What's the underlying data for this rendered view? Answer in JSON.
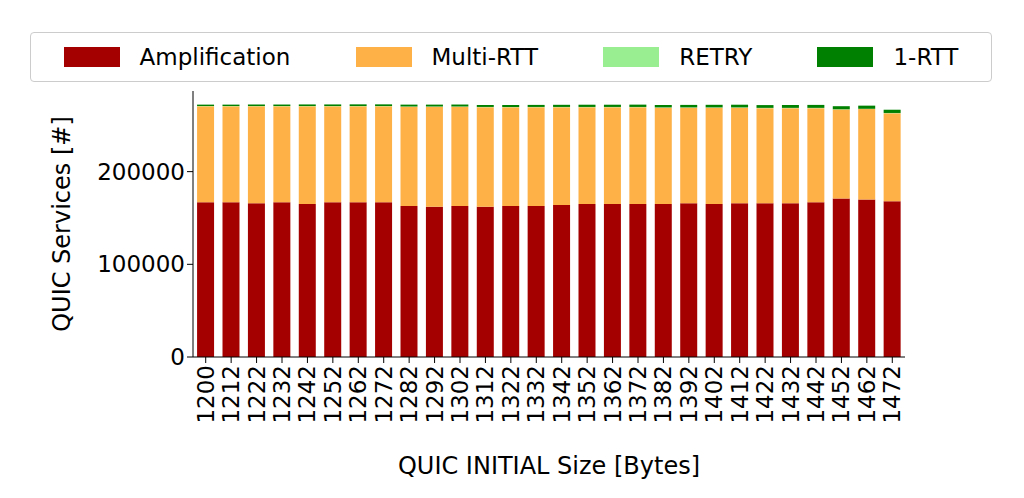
{
  "chart_data": {
    "type": "bar",
    "stacked": true,
    "legend": "top",
    "grid": false,
    "x_label": "QUIC INITIAL Size [Bytes]",
    "y_label": "QUIC Services [#]",
    "categories": [
      "1200",
      "1212",
      "1222",
      "1232",
      "1242",
      "1252",
      "1262",
      "1272",
      "1282",
      "1292",
      "1302",
      "1312",
      "1322",
      "1332",
      "1342",
      "1352",
      "1362",
      "1372",
      "1382",
      "1392",
      "1402",
      "1412",
      "1422",
      "1432",
      "1442",
      "1452",
      "1462",
      "1472"
    ],
    "ylim": [
      0,
      287000
    ],
    "yticks": [
      0,
      100000,
      200000
    ],
    "series": [
      {
        "name": "Amplification",
        "color": "#a50000",
        "values": [
          167000,
          167000,
          166000,
          167000,
          165000,
          167000,
          167000,
          167000,
          163000,
          162000,
          163000,
          162000,
          163000,
          163000,
          164000,
          165000,
          165000,
          165000,
          165000,
          166000,
          165000,
          166000,
          166000,
          166000,
          167000,
          171000,
          170000,
          168000
        ]
      },
      {
        "name": "Multi-RTT",
        "color": "#fdb147",
        "values": [
          103500,
          103500,
          104500,
          103500,
          105500,
          103500,
          103500,
          103500,
          107000,
          108000,
          107000,
          107500,
          106500,
          106500,
          105500,
          104500,
          104500,
          104500,
          104000,
          103000,
          104000,
          103000,
          102500,
          102500,
          101500,
          96000,
          97500,
          95000
        ]
      },
      {
        "name": "RETRY",
        "color": "#98ee90",
        "values": [
          300,
          300,
          300,
          300,
          300,
          300,
          300,
          300,
          300,
          300,
          300,
          300,
          300,
          300,
          300,
          300,
          300,
          300,
          300,
          300,
          300,
          300,
          300,
          300,
          300,
          300,
          300,
          300
        ]
      },
      {
        "name": "1-RTT",
        "color": "#008000",
        "values": [
          1500,
          1500,
          1600,
          1600,
          1700,
          1700,
          1800,
          1800,
          2000,
          2000,
          2100,
          2100,
          2200,
          2200,
          2300,
          2400,
          2400,
          2500,
          2600,
          2700,
          2800,
          2900,
          3000,
          3100,
          3200,
          3300,
          3400,
          3500
        ]
      }
    ]
  }
}
